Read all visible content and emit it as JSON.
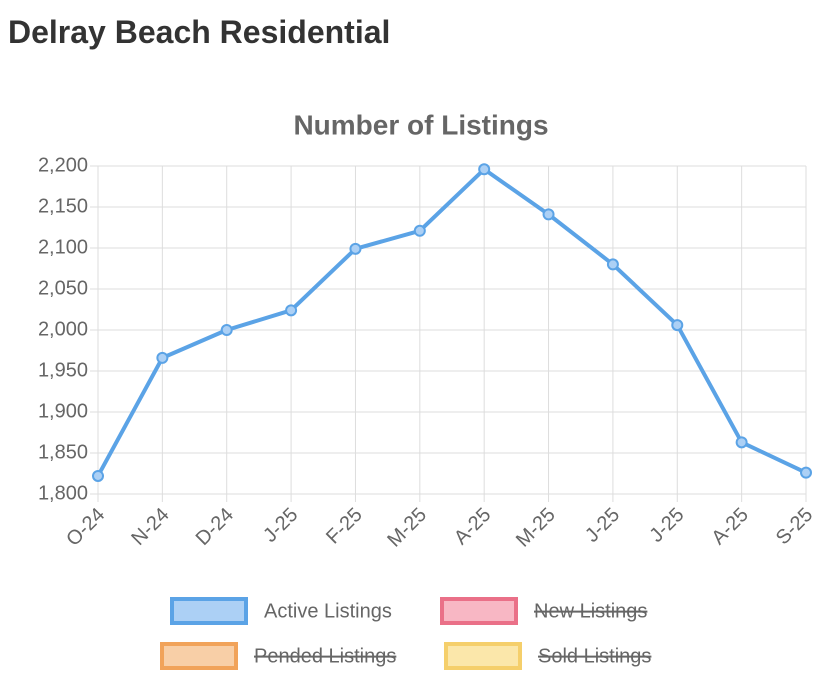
{
  "header": {
    "title": "Delray Beach Residential"
  },
  "chart_data": {
    "type": "line",
    "title": "Number of Listings",
    "categories": [
      "O-24",
      "N-24",
      "D-24",
      "J-25",
      "F-25",
      "M-25",
      "A-25",
      "M-25",
      "J-25",
      "J-25",
      "A-25",
      "S-25"
    ],
    "series": [
      {
        "name": "Active Listings",
        "color": "#5ba3e6",
        "fill": "#acd0f5",
        "values": [
          1822,
          1966,
          2000,
          2024,
          2099,
          2121,
          2196,
          2141,
          2080,
          2006,
          1863,
          1826
        ]
      },
      {
        "name": "New Listings",
        "color": "#ea7088",
        "fill": "#f8b7c4",
        "hidden": true
      },
      {
        "name": "Pended Listings",
        "color": "#f1a35a",
        "fill": "#f8cfa7",
        "hidden": true
      },
      {
        "name": "Sold Listings",
        "color": "#f5cf6b",
        "fill": "#fbe7aa",
        "hidden": true
      }
    ],
    "ylim": [
      1800,
      2200
    ],
    "yticks": [
      {
        "value": 1800,
        "label": "1,800"
      },
      {
        "value": 1850,
        "label": "1,850"
      },
      {
        "value": 1900,
        "label": "1,900"
      },
      {
        "value": 1950,
        "label": "1,950"
      },
      {
        "value": 2000,
        "label": "2,000"
      },
      {
        "value": 2050,
        "label": "2,050"
      },
      {
        "value": 2100,
        "label": "2,100"
      },
      {
        "value": 2150,
        "label": "2,150"
      },
      {
        "value": 2200,
        "label": "2,200"
      }
    ],
    "grid": true
  }
}
